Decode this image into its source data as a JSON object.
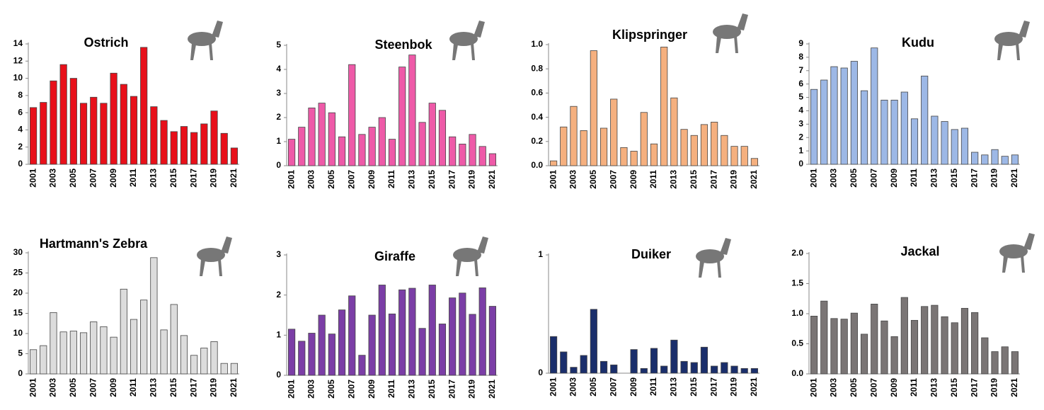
{
  "chart_data": [
    {
      "type": "bar",
      "title": "Ostrich",
      "color": "#e8101a",
      "categories": [
        "2001",
        null,
        "2003",
        null,
        "2005",
        null,
        "2007",
        null,
        "2009",
        null,
        "2011",
        null,
        "2013",
        null,
        "2015",
        null,
        "2017",
        null,
        "2019",
        null,
        "2021"
      ],
      "values": [
        6.6,
        7.2,
        9.7,
        11.6,
        10.0,
        7.1,
        7.8,
        7.1,
        10.6,
        9.3,
        7.9,
        13.6,
        6.7,
        5.1,
        3.8,
        4.4,
        3.7,
        4.7,
        6.2,
        3.6,
        1.9
      ],
      "ylim": [
        0,
        14
      ],
      "yticks": [
        0,
        2,
        4,
        6,
        8,
        10,
        12,
        14
      ]
    },
    {
      "type": "bar",
      "title": "Steenbok",
      "color": "#ee5aa8",
      "categories": [
        "2001",
        null,
        "2003",
        null,
        "2005",
        null,
        "2007",
        null,
        "2009",
        null,
        "2011",
        null,
        "2013",
        null,
        "2015",
        null,
        "2017",
        null,
        "2019",
        null,
        "2021"
      ],
      "values": [
        1.1,
        1.6,
        2.4,
        2.6,
        2.2,
        1.2,
        4.2,
        1.3,
        1.6,
        2.0,
        1.1,
        4.1,
        4.6,
        1.8,
        2.6,
        2.3,
        1.2,
        0.9,
        1.3,
        0.8,
        0.5
      ],
      "ylim": [
        0,
        5
      ],
      "yticks": [
        0,
        1,
        2,
        3,
        4,
        5
      ]
    },
    {
      "type": "bar",
      "title": "Klipspringer",
      "color": "#f5b07f",
      "categories": [
        "2001",
        null,
        "2003",
        null,
        "2005",
        null,
        "2007",
        null,
        "2009",
        null,
        "2011",
        null,
        "2013",
        null,
        "2015",
        null,
        "2017",
        null,
        "2019",
        null,
        "2021"
      ],
      "values": [
        0.04,
        0.32,
        0.49,
        0.29,
        0.95,
        0.31,
        0.55,
        0.15,
        0.12,
        0.44,
        0.18,
        0.98,
        0.56,
        0.3,
        0.25,
        0.34,
        0.36,
        0.25,
        0.16,
        0.16,
        0.06
      ],
      "ylim": [
        0,
        1
      ],
      "yticks": [
        {
          "value": 0,
          "label": "0.0"
        },
        0.2,
        0.4,
        0.6,
        0.8,
        {
          "value": 1,
          "label": "1.0"
        }
      ]
    },
    {
      "type": "bar",
      "title": "Kudu",
      "color": "#9db8e6",
      "categories": [
        "2001",
        null,
        "2003",
        null,
        "2005",
        null,
        "2007",
        null,
        "2009",
        null,
        "2011",
        null,
        "2013",
        null,
        "2015",
        null,
        "2017",
        null,
        "2019",
        null,
        "2021"
      ],
      "values": [
        5.6,
        6.3,
        7.3,
        7.2,
        7.7,
        5.5,
        8.7,
        4.8,
        4.8,
        5.4,
        3.4,
        6.6,
        3.6,
        3.2,
        2.6,
        2.7,
        0.9,
        0.7,
        1.1,
        0.6,
        0.7
      ],
      "ylim": [
        0,
        9
      ],
      "yticks": [
        0,
        1,
        2,
        3,
        4,
        5,
        6,
        7,
        8,
        9
      ]
    },
    {
      "type": "bar",
      "title": "Hartmann's Zebra",
      "color": "#dcdcdc",
      "categories": [
        "2001",
        null,
        "2003",
        null,
        "2005",
        null,
        "2007",
        null,
        "2009",
        null,
        "2011",
        null,
        "2013",
        null,
        "2015",
        null,
        "2017",
        null,
        "2019",
        null,
        "2021"
      ],
      "values": [
        6.0,
        7.0,
        15.2,
        10.4,
        10.6,
        10.2,
        12.9,
        11.7,
        9.1,
        21.0,
        13.5,
        18.3,
        28.8,
        10.9,
        17.2,
        9.5,
        4.6,
        6.4,
        8.0,
        2.6,
        2.6
      ],
      "ylim": [
        0,
        30
      ],
      "yticks": [
        0,
        5,
        10,
        15,
        20,
        25,
        30
      ]
    },
    {
      "type": "bar",
      "title": "Giraffe",
      "color": "#7b3ea6",
      "categories": [
        "2001",
        null,
        "2003",
        null,
        "2005",
        null,
        "2007",
        null,
        "2009",
        null,
        "2011",
        null,
        "2013",
        null,
        "2015",
        null,
        "2017",
        null,
        "2019",
        null,
        "2021"
      ],
      "values": [
        1.15,
        0.85,
        1.05,
        1.5,
        1.03,
        1.63,
        1.98,
        0.5,
        1.5,
        2.25,
        1.53,
        2.13,
        2.17,
        1.17,
        2.25,
        1.28,
        1.93,
        2.05,
        1.52,
        2.18,
        1.72
      ],
      "ylim": [
        0,
        3
      ],
      "yticks": [
        0,
        1,
        2,
        3
      ]
    },
    {
      "type": "bar",
      "title": "Duiker",
      "color": "#1a2e6b",
      "categories": [
        "2001",
        null,
        "2003",
        null,
        "2005",
        null,
        "2007",
        null,
        "2009",
        null,
        "2011",
        null,
        "2013",
        null,
        "2015",
        null,
        "2017",
        null,
        "2019",
        null,
        "2021"
      ],
      "values": [
        0.31,
        0.18,
        0.05,
        0.15,
        0.54,
        0.1,
        0.07,
        0,
        0.2,
        0.04,
        0.21,
        0.06,
        0.28,
        0.1,
        0.09,
        0.22,
        0.06,
        0.09,
        0.06,
        0.04,
        0.04
      ],
      "ylim": [
        0,
        1
      ],
      "yticks": [
        0,
        1
      ]
    },
    {
      "type": "bar",
      "title": "Jackal",
      "color": "#7a7575",
      "categories": [
        "2001",
        null,
        "2003",
        null,
        "2005",
        null,
        "2007",
        null,
        "2009",
        null,
        "2011",
        null,
        "2013",
        null,
        "2015",
        null,
        "2017",
        null,
        "2019",
        null,
        "2021"
      ],
      "values": [
        0.96,
        1.21,
        0.92,
        0.91,
        1.01,
        0.66,
        1.16,
        0.88,
        0.62,
        1.27,
        0.89,
        1.12,
        1.14,
        0.95,
        0.85,
        1.09,
        1.02,
        0.6,
        0.37,
        0.45,
        0.37
      ],
      "ylim": [
        0,
        2
      ],
      "yticks": [
        {
          "value": 0,
          "label": "0.0"
        },
        0.5,
        {
          "value": 1,
          "label": "1.0"
        },
        1.5,
        {
          "value": 2,
          "label": "2.0"
        }
      ]
    }
  ]
}
